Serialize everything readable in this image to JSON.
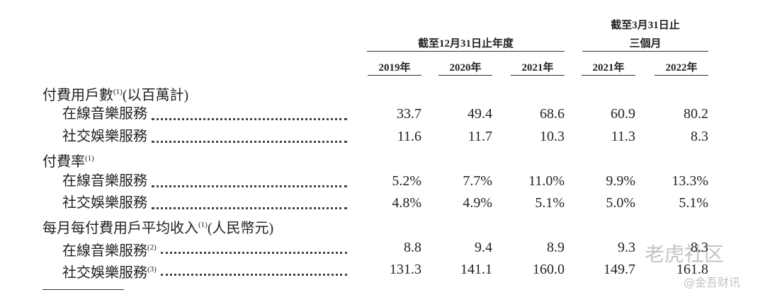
{
  "header": {
    "group1": "截至12月31日止年度",
    "group2_line1": "截至3月31日止",
    "group2_line2": "三個月",
    "years": [
      "2019年",
      "2020年",
      "2021年",
      "2021年",
      "2022年"
    ]
  },
  "sections": [
    {
      "label": "付費用戶數",
      "sup": "(1)",
      "suffix": "(以百萬計)",
      "rows": [
        {
          "label": "在線音樂服務",
          "values": [
            "33.7",
            "49.4",
            "68.6",
            "60.9",
            "80.2"
          ]
        },
        {
          "label": "社交娛樂服務",
          "values": [
            "11.6",
            "11.7",
            "10.3",
            "11.3",
            "8.3"
          ]
        }
      ]
    },
    {
      "label": "付費率",
      "sup": "(1)",
      "rows": [
        {
          "label": "在線音樂服務",
          "values": [
            "5.2%",
            "7.7%",
            "11.0%",
            "9.9%",
            "13.3%"
          ]
        },
        {
          "label": "社交娛樂服務",
          "values": [
            "4.8%",
            "4.9%",
            "5.1%",
            "5.0%",
            "5.1%"
          ]
        }
      ]
    },
    {
      "label": "每月每付費用戶平均收入",
      "sup": "(1)",
      "suffix": "(人民幣元)",
      "rows": [
        {
          "label": "在線音樂服務",
          "sup": "(2)",
          "values": [
            "8.8",
            "9.4",
            "8.9",
            "9.3",
            "8.3"
          ]
        },
        {
          "label": "社交娛樂服務",
          "sup": "(3)",
          "values": [
            "131.3",
            "141.1",
            "160.0",
            "149.7",
            "161.8"
          ]
        }
      ]
    }
  ],
  "watermark": {
    "logo": "老虎社区",
    "source": "@金吾财讯"
  }
}
